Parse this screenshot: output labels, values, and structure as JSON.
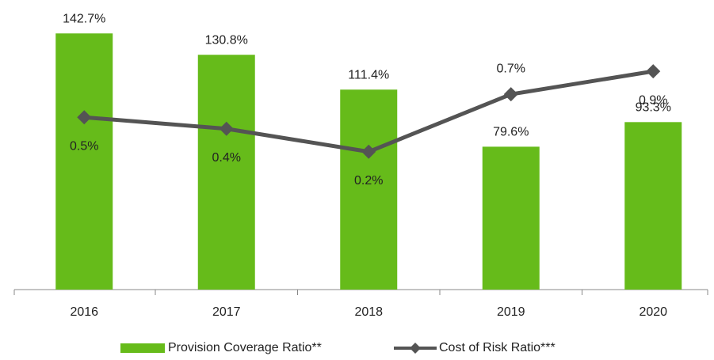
{
  "chart_data": {
    "type": "bar",
    "categories": [
      "2016",
      "2017",
      "2018",
      "2019",
      "2020"
    ],
    "series": [
      {
        "name": "Provision Coverage Ratio**",
        "type": "bar",
        "color": "#66bb1a",
        "values": [
          142.7,
          130.8,
          111.4,
          79.6,
          93.3
        ],
        "value_labels": [
          "142.7%",
          "130.8%",
          "111.4%",
          "79.6%",
          "93.3%"
        ]
      },
      {
        "name": "Cost of Risk Ratio***",
        "type": "line",
        "axis": "y2",
        "color": "#545454",
        "values": [
          0.5,
          0.4,
          0.2,
          0.7,
          0.9
        ],
        "value_labels": [
          "0.5%",
          "0.4%",
          "0.2%",
          "0.7%",
          "0.9%"
        ]
      }
    ],
    "ylim": [
      0,
      160
    ],
    "y2lim": [
      -1,
      1.5
    ],
    "legend": "bottom"
  }
}
